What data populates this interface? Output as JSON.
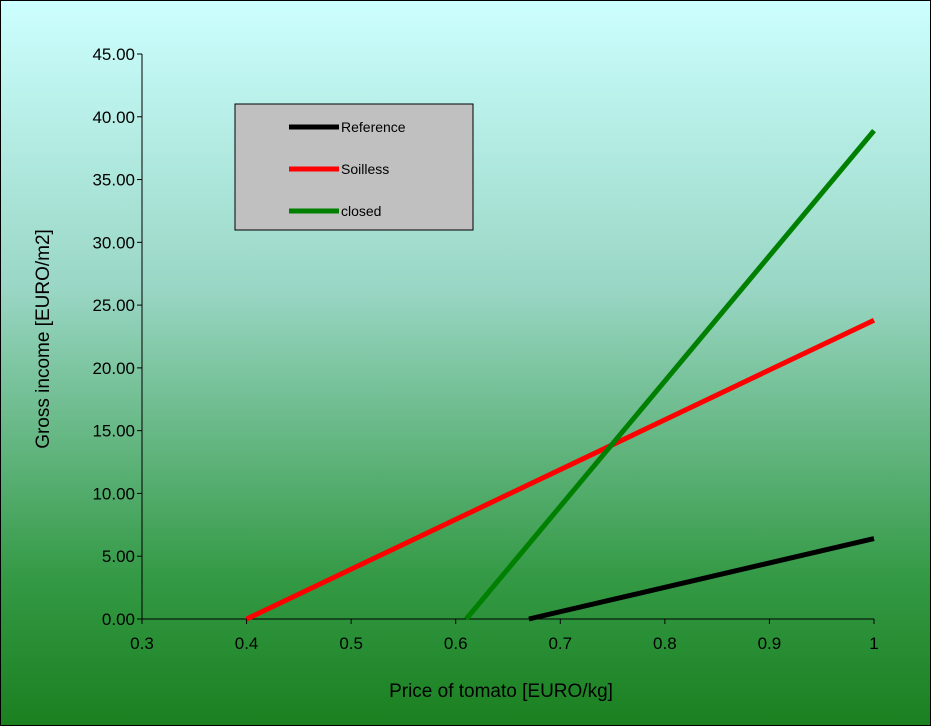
{
  "chart_data": {
    "type": "line",
    "title": "",
    "xlabel": "Price of tomato [EURO/kg]",
    "ylabel": "Gross income [EURO/m2]",
    "xlim": [
      0.3,
      1.0
    ],
    "ylim": [
      0,
      45
    ],
    "x_ticks": [
      "0.3",
      "0.4",
      "0.5",
      "0.6",
      "0.7",
      "0.8",
      "0.9",
      "1"
    ],
    "y_ticks": [
      "0.00",
      "5.00",
      "10.00",
      "15.00",
      "20.00",
      "25.00",
      "30.00",
      "35.00",
      "40.00",
      "45.00"
    ],
    "grid": false,
    "legend_position": "top-left",
    "series": [
      {
        "name": "Reference",
        "color": "#000000",
        "points": [
          [
            0.67,
            0.0
          ],
          [
            1.0,
            6.4
          ]
        ]
      },
      {
        "name": "Soilless",
        "color": "#ff0000",
        "points": [
          [
            0.4,
            0.0
          ],
          [
            1.0,
            23.8
          ]
        ]
      },
      {
        "name": "closed",
        "color": "#008000",
        "points": [
          [
            0.61,
            0.0
          ],
          [
            1.0,
            38.9
          ]
        ]
      }
    ]
  }
}
